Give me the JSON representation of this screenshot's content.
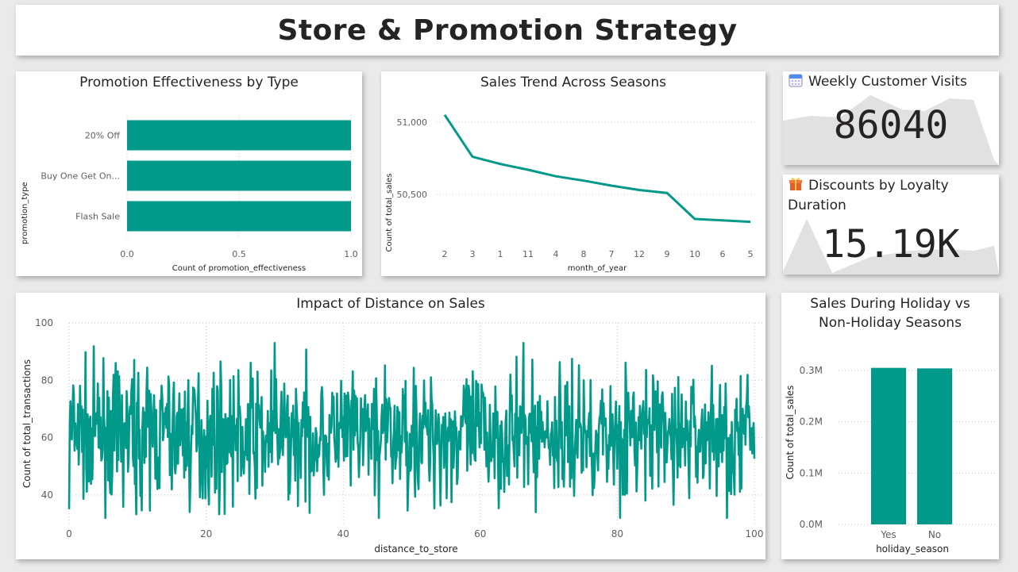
{
  "page": {
    "title": "Store & Promotion Strategy"
  },
  "promo": {
    "title": "Promotion Effectiveness by Type",
    "ylabel": "promotion_type",
    "xlabel": "Count of promotion_effectiveness"
  },
  "trend": {
    "title": "Sales Trend Across Seasons",
    "ylabel": "Count of total_sales",
    "xlabel": "month_of_year"
  },
  "visits": {
    "title": "Weekly Customer Visits",
    "icon": "calendar-icon",
    "value": "86040"
  },
  "discounts": {
    "title": "Discounts by Loyalty Duration",
    "icon": "gift-icon",
    "value": "15.19K"
  },
  "distance": {
    "title": "Impact of Distance on Sales",
    "ylabel": "Count of total_transactions",
    "xlabel": "distance_to_store"
  },
  "holiday": {
    "title_line1": "Sales During Holiday vs",
    "title_line2": "Non-Holiday Seasons",
    "ylabel": "Count of total_sales",
    "xlabel": "holiday_season"
  },
  "colors": {
    "accent": "#01998a",
    "sparkline": "#e1e1e1",
    "text": "#252423",
    "axis": "#605e5c"
  },
  "chart_data": [
    {
      "type": "bar",
      "orientation": "horizontal",
      "title": "Promotion Effectiveness by Type",
      "categories": [
        "20% Off",
        "Buy One Get On...",
        "Flash Sale"
      ],
      "values": [
        1,
        1,
        1
      ],
      "xlabel": "Count of promotion_effectiveness",
      "ylabel": "promotion_type",
      "xlim": [
        0,
        1
      ],
      "xticks": [
        "0.0",
        "0.5",
        "1.0"
      ]
    },
    {
      "type": "line",
      "title": "Sales Trend Across Seasons",
      "categories": [
        "2",
        "3",
        "1",
        "11",
        "4",
        "8",
        "7",
        "12",
        "9",
        "10",
        "6",
        "5"
      ],
      "values": [
        51050,
        50760,
        50710,
        50670,
        50625,
        50595,
        50560,
        50530,
        50510,
        50330,
        50320,
        50310
      ],
      "xlabel": "month_of_year",
      "ylabel": "Count of total_sales",
      "ylim": [
        50220,
        51120
      ],
      "yticks": [
        {
          "v": 50500,
          "label": "50,500"
        },
        {
          "v": 51000,
          "label": "51,000"
        }
      ]
    },
    {
      "type": "line",
      "title": "Impact of Distance on Sales",
      "xlabel": "distance_to_store",
      "ylabel": "Count of total_transactions",
      "xlim": [
        0,
        100
      ],
      "ylim": [
        30,
        100
      ],
      "xticks": [
        0,
        20,
        40,
        60,
        80,
        100
      ],
      "yticks": [
        40,
        60,
        80,
        100
      ],
      "samples": 1000,
      "mean": 61,
      "observed_min": 32,
      "observed_max": 93
    },
    {
      "type": "bar",
      "title": "Sales During Holiday vs Non-Holiday Seasons",
      "categories": [
        "Yes",
        "No"
      ],
      "values": [
        0.305,
        0.304
      ],
      "units": "M",
      "xlabel": "holiday_season",
      "ylabel": "Count of total_sales",
      "ylim": [
        0,
        0.32
      ],
      "yticks": [
        {
          "v": 0,
          "label": "0.0M"
        },
        {
          "v": 0.1,
          "label": "0.1M"
        },
        {
          "v": 0.2,
          "label": "0.2M"
        },
        {
          "v": 0.3,
          "label": "0.3M"
        }
      ]
    }
  ]
}
